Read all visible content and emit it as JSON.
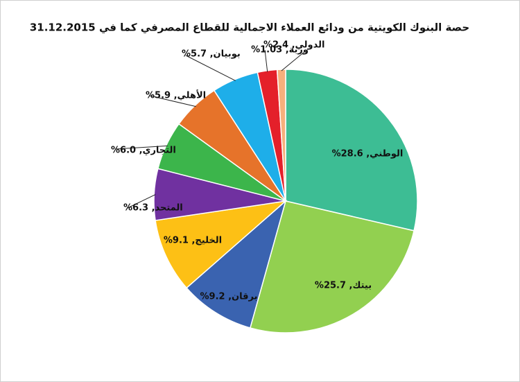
{
  "chart_data": {
    "type": "pie",
    "title": "حصة البنوك الكويتية من ودائع العملاء الاجمالية للقطاع المصرفي كما في 31.12.2015",
    "values": [
      28.6,
      25.7,
      9.2,
      9.1,
      6.3,
      6.0,
      5.9,
      5.7,
      2.4,
      1.03
    ],
    "value_labels": [
      "الوطني, 28.6%",
      "بيتك, 25.7%",
      "برقان, 9.2%",
      "الخليج, 9.1%",
      "المتحد, 6.3%",
      "التجاري, 6.0%",
      "الأهلي, 5.9%",
      "بوبيان, 5.7%",
      "الدولي, 2.4%",
      "وربة, 1.03%"
    ],
    "colors": [
      "#3dbd94",
      "#92d050",
      "#3a63b0",
      "#fdc015",
      "#7031a0",
      "#3cb54b",
      "#e6732a",
      "#1eaee9",
      "#e4202a",
      "#f6b07c"
    ]
  }
}
